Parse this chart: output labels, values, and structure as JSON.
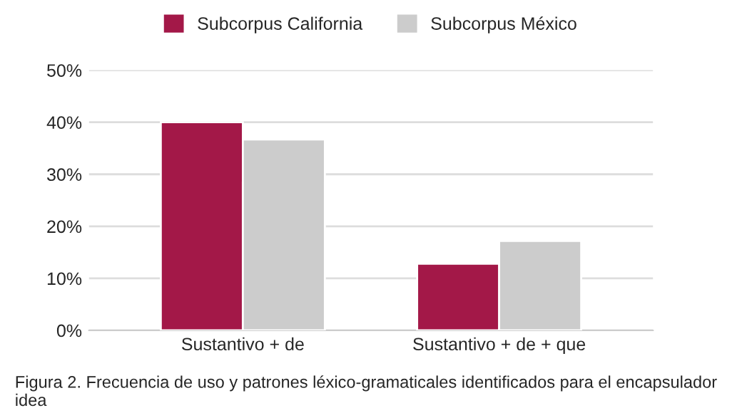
{
  "chart_data": {
    "type": "bar",
    "categories": [
      "Sustantivo + de",
      "Sustantivo + de + que"
    ],
    "series": [
      {
        "name": "Subcorpus California",
        "color": "#a31848",
        "values": [
          40,
          12.8
        ]
      },
      {
        "name": "Subcorpus México",
        "color": "#cccccc",
        "values": [
          36.7,
          17.2
        ]
      }
    ],
    "ylim": [
      0,
      50
    ],
    "yticks": [
      {
        "value": 0,
        "label": "0%"
      },
      {
        "value": 10,
        "label": "10%"
      },
      {
        "value": 20,
        "label": "20%"
      },
      {
        "value": 30,
        "label": "30%"
      },
      {
        "value": 40,
        "label": "40%"
      },
      {
        "value": 50,
        "label": "50%"
      }
    ],
    "grid": "y",
    "legend": "top",
    "annotations": [
      "Figura 2. Frecuencia de uso y patrones léxico-gramaticales identificados para el encapsulador idea"
    ]
  }
}
